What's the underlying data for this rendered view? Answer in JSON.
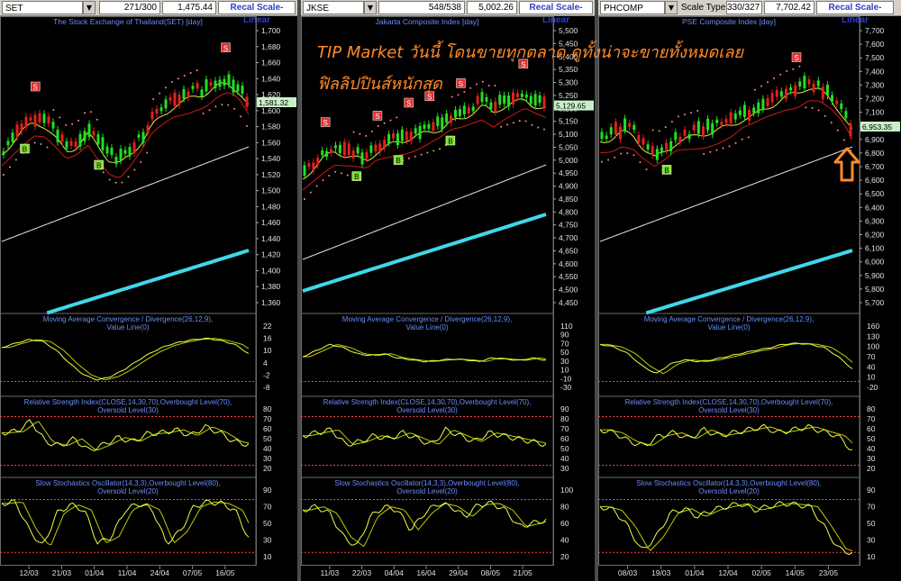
{
  "panels": [
    {
      "symbol": "SET",
      "range": "271/300",
      "value": "1,475.44",
      "button": "Recal Scale-Linear",
      "title": "The Stock Exchange of Thailand(SET) [day]",
      "price_axis": [
        "1,700",
        "1,680",
        "1,660",
        "1,640",
        "1,620",
        "1,600",
        "1,580",
        "1,560",
        "1,540",
        "1,520",
        "1,500",
        "1,480",
        "1,460",
        "1,440",
        "1,420",
        "1,400",
        "1,380",
        "1,360"
      ],
      "last_price": "1,581.32",
      "macd_label": "Moving Average Convergence / Divergence(26,12,9),Value Line(0)",
      "macd_axis": [
        "22",
        "16",
        "10",
        "4",
        "-2",
        "-8"
      ],
      "rsi_label": "Relative Strength Index(CLOSE,14,30,70),Overbought Level(70),Oversold Level(30)",
      "rsi_axis": [
        "80",
        "70",
        "60",
        "50",
        "40",
        "30",
        "20"
      ],
      "sto_label": "Slow Stochastics Oscillator(14,3,3),Overbought Level(80),Oversold Level(20)",
      "sto_axis": [
        "90",
        "70",
        "50",
        "30",
        "10"
      ],
      "dates": [
        "12/03",
        "21/03",
        "01/04",
        "11/04",
        "24/04",
        "07/05",
        "16/05"
      ]
    },
    {
      "symbol": "JKSE",
      "range": "548/538",
      "value": "5,002.26",
      "button": "Recal Scale-Linear",
      "title": "Jakarta Composite Index [day]",
      "price_axis": [
        "5,500",
        "5,450",
        "5,400",
        "5,350",
        "5,300",
        "5,250",
        "5,200",
        "5,150",
        "5,100",
        "5,050",
        "5,000",
        "4,950",
        "4,900",
        "4,850",
        "4,800",
        "4,750",
        "4,700",
        "4,650",
        "4,600",
        "4,550",
        "4,500",
        "4,450"
      ],
      "last_price": "5,129.65",
      "macd_label": "Moving Average Convergence / Divergence(26,12,9),Value Line(0)",
      "macd_axis": [
        "110",
        "90",
        "70",
        "50",
        "30",
        "10",
        "-10",
        "-30"
      ],
      "rsi_label": "Relative Strength Index(CLOSE,14,30,70),Overbought Level(70),Oversold Level(30)",
      "rsi_axis": [
        "90",
        "80",
        "70",
        "60",
        "50",
        "40",
        "30"
      ],
      "sto_label": "Slow Stochastics Oscillator(14,3,3),Overbought Level(80),Oversold Level(20)",
      "sto_axis": [
        "100",
        "80",
        "60",
        "40",
        "20"
      ],
      "dates": [
        "11/03",
        "22/03",
        "04/04",
        "16/04",
        "29/04",
        "08/05",
        "21/05"
      ]
    },
    {
      "symbol": "PHCOMP",
      "range": "330/327",
      "value": "7,702.42",
      "scale_type": "Scale Type",
      "button": "Recal Scale-Linear",
      "title": "PSE Composite Index [day]",
      "price_axis": [
        "7,700",
        "7,600",
        "7,500",
        "7,400",
        "7,300",
        "7,200",
        "7,100",
        "7,000",
        "6,900",
        "6,800",
        "6,700",
        "6,600",
        "6,500",
        "6,400",
        "6,300",
        "6,200",
        "6,100",
        "6,000",
        "5,900",
        "5,800",
        "5,700"
      ],
      "last_price": "6,953.35",
      "macd_label": "Moving Average Convergence / Divergence(26,12,9),Value Line(0)",
      "macd_axis": [
        "160",
        "130",
        "100",
        "70",
        "40",
        "10",
        "-20"
      ],
      "rsi_label": "Relative Strength Index(CLOSE,14,30,70),Overbought Level(70),Oversold Level(30)",
      "rsi_axis": [
        "80",
        "70",
        "60",
        "50",
        "40",
        "30",
        "20"
      ],
      "sto_label": "Slow Stochastics Oscillator(14,3,3),Overbought Level(80),Oversold Level(20)",
      "sto_axis": [
        "90",
        "70",
        "50",
        "30",
        "10"
      ],
      "dates": [
        "08/03",
        "19/03",
        "01/04",
        "12/04",
        "02/05",
        "14/05",
        "23/05"
      ]
    }
  ],
  "caption": {
    "line1": "TIP Market วันนี้ โดนขายทุกตลาด ดูทั้งน่าจะขายทั้งหมดเลย",
    "line2": "ฟิลลิปปินส์หนักสุด"
  },
  "colors": {
    "up_candle": "#22e022",
    "down_candle": "#e02020",
    "sell_marker": "#e23030",
    "buy_marker": "#7fe02a",
    "ma_yellow": "#e8e83a",
    "ma_red": "#d01818",
    "ma_white": "#e8e8e8",
    "ma_cyan": "#3fd8e8",
    "psar": "#ff8a8a",
    "caption": "#ff8a2a",
    "arrow": "#ff8a2a"
  }
}
